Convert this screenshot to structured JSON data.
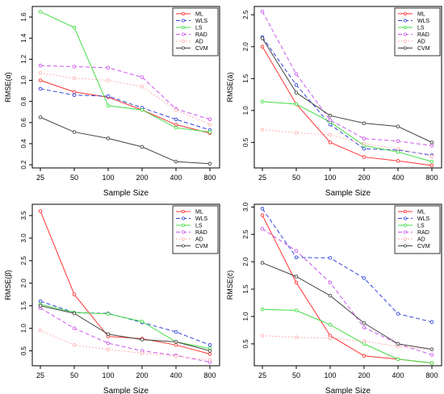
{
  "chart_data": [
    {
      "type": "line",
      "title": "",
      "xlabel": "Sample Size",
      "ylabel": "RMSE(α̂)",
      "categories": [
        "25",
        "50",
        "100",
        "200",
        "400",
        "800"
      ],
      "ylim": [
        0.17,
        1.7
      ],
      "yticks": [
        0.2,
        0.4,
        0.6,
        0.8,
        1.0,
        1.2,
        1.4,
        1.6
      ],
      "ytick_labels": [
        "0.2",
        "0.4",
        "0.6",
        "0.8",
        "1.0",
        "1.2",
        "1.4",
        "1.6"
      ],
      "legend_position": "top-right",
      "series": [
        {
          "name": "ML",
          "color": "#ff3333",
          "dash": "solid",
          "values": [
            1.0,
            0.89,
            0.84,
            0.72,
            0.58,
            0.5
          ]
        },
        {
          "name": "WLS",
          "color": "#3344dd",
          "dash": "dashed",
          "values": [
            0.92,
            0.86,
            0.85,
            0.74,
            0.63,
            0.53
          ]
        },
        {
          "name": "LS",
          "color": "#44dd44",
          "dash": "solid",
          "values": [
            1.65,
            1.5,
            0.76,
            0.72,
            0.55,
            0.51
          ]
        },
        {
          "name": "RAD",
          "color": "#cc55ee",
          "dash": "dashed",
          "values": [
            1.14,
            1.13,
            1.12,
            1.03,
            0.73,
            0.63
          ]
        },
        {
          "name": "AD",
          "color": "#ffb0b0",
          "dash": "dotted",
          "values": [
            1.07,
            1.02,
            1.0,
            0.94,
            0.72,
            0.58
          ]
        },
        {
          "name": "CVM",
          "color": "#444444",
          "dash": "solid",
          "values": [
            0.65,
            0.51,
            0.45,
            0.37,
            0.23,
            0.21
          ]
        }
      ]
    },
    {
      "type": "line",
      "title": "",
      "xlabel": "Sample Size",
      "ylabel": "RMSE(â)",
      "categories": [
        "25",
        "50",
        "100",
        "200",
        "400",
        "800"
      ],
      "ylim": [
        0.1,
        2.63
      ],
      "yticks": [
        0.5,
        1.0,
        1.5,
        2.0,
        2.5
      ],
      "ytick_labels": [
        "0.5",
        "1.0",
        "1.5",
        "2.0",
        "2.5"
      ],
      "legend_position": "top-right",
      "series": [
        {
          "name": "ML",
          "color": "#ff3333",
          "dash": "solid",
          "values": [
            2.0,
            1.1,
            0.5,
            0.27,
            0.21,
            0.14
          ]
        },
        {
          "name": "WLS",
          "color": "#3344dd",
          "dash": "dashed",
          "values": [
            2.15,
            1.4,
            0.78,
            0.4,
            0.38,
            0.3
          ]
        },
        {
          "name": "LS",
          "color": "#44dd44",
          "dash": "solid",
          "values": [
            1.14,
            1.1,
            0.82,
            0.45,
            0.35,
            0.2
          ]
        },
        {
          "name": "RAD",
          "color": "#cc55ee",
          "dash": "dashed",
          "values": [
            2.55,
            1.57,
            0.85,
            0.56,
            0.52,
            0.45
          ]
        },
        {
          "name": "AD",
          "color": "#ffb0b0",
          "dash": "dotted",
          "values": [
            0.7,
            0.65,
            0.62,
            0.48,
            0.4,
            0.28
          ]
        },
        {
          "name": "CVM",
          "color": "#444444",
          "dash": "solid",
          "values": [
            2.13,
            1.28,
            0.92,
            0.8,
            0.75,
            0.5
          ]
        }
      ]
    },
    {
      "type": "line",
      "title": "",
      "xlabel": "Sample Size",
      "ylabel": "RMSE(β̂)",
      "categories": [
        "25",
        "50",
        "100",
        "200",
        "400",
        "800"
      ],
      "ylim": [
        0.17,
        3.75
      ],
      "yticks": [
        0.5,
        1.0,
        1.5,
        2.0,
        2.5,
        3.0,
        3.5
      ],
      "ytick_labels": [
        "0.5",
        "1.0",
        "1.5",
        "2.0",
        "2.5",
        "3.0",
        "3.5"
      ],
      "legend_position": "top-right",
      "series": [
        {
          "name": "ML",
          "color": "#ff3333",
          "dash": "solid",
          "values": [
            3.6,
            1.75,
            0.82,
            0.77,
            0.63,
            0.43
          ]
        },
        {
          "name": "WLS",
          "color": "#3344dd",
          "dash": "dashed",
          "values": [
            1.6,
            1.35,
            1.33,
            1.13,
            0.92,
            0.63
          ]
        },
        {
          "name": "LS",
          "color": "#44dd44",
          "dash": "solid",
          "values": [
            1.53,
            1.35,
            1.32,
            1.15,
            0.7,
            0.55
          ]
        },
        {
          "name": "RAD",
          "color": "#cc55ee",
          "dash": "dashed",
          "values": [
            1.45,
            1.0,
            0.67,
            0.5,
            0.4,
            0.25
          ]
        },
        {
          "name": "AD",
          "color": "#ffb0b0",
          "dash": "dotted",
          "values": [
            0.95,
            0.63,
            0.53,
            0.45,
            0.38,
            0.3
          ]
        },
        {
          "name": "CVM",
          "color": "#444444",
          "dash": "solid",
          "values": [
            1.5,
            1.33,
            0.87,
            0.75,
            0.7,
            0.5
          ]
        }
      ]
    },
    {
      "type": "line",
      "title": "",
      "xlabel": "Sample Size",
      "ylabel": "RMSE(ĉ)",
      "categories": [
        "25",
        "50",
        "100",
        "200",
        "400",
        "800"
      ],
      "ylim": [
        0.1,
        3.05
      ],
      "yticks": [
        0.5,
        1.0,
        1.5,
        2.0,
        2.5,
        3.0
      ],
      "ytick_labels": [
        "0.5",
        "1.0",
        "1.5",
        "2.0",
        "2.5",
        "3.0"
      ],
      "legend_position": "top-right",
      "series": [
        {
          "name": "ML",
          "color": "#ff3333",
          "dash": "solid",
          "values": [
            2.85,
            1.62,
            0.65,
            0.28,
            0.22,
            0.15
          ]
        },
        {
          "name": "WLS",
          "color": "#3344dd",
          "dash": "dashed",
          "values": [
            2.97,
            2.08,
            2.07,
            1.7,
            1.05,
            0.9
          ]
        },
        {
          "name": "LS",
          "color": "#44dd44",
          "dash": "solid",
          "values": [
            1.13,
            1.11,
            0.85,
            0.5,
            0.22,
            0.15
          ]
        },
        {
          "name": "RAD",
          "color": "#cc55ee",
          "dash": "dashed",
          "values": [
            2.6,
            2.2,
            1.62,
            0.8,
            0.5,
            0.3
          ]
        },
        {
          "name": "AD",
          "color": "#ffb0b0",
          "dash": "dotted",
          "values": [
            0.65,
            0.62,
            0.6,
            0.55,
            0.45,
            0.4
          ]
        },
        {
          "name": "CVM",
          "color": "#444444",
          "dash": "solid",
          "values": [
            1.98,
            1.73,
            1.38,
            0.88,
            0.5,
            0.4
          ]
        }
      ]
    }
  ]
}
